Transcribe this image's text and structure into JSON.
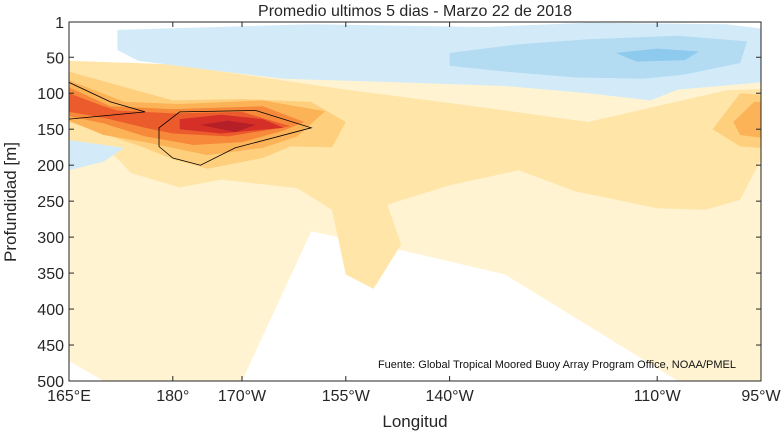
{
  "chart_data": {
    "type": "heatmap",
    "title": "Promedio ultimos 5 dias - Marzo 22 de 2018",
    "xlabel": "Longitud",
    "ylabel": "Profundidad [m]",
    "source_note": "Fuente: Global Tropical Moored Buoy Array Program Office, NOAA/PMEL",
    "x_ticks": [
      {
        "value": 165,
        "label": "165°E"
      },
      {
        "value": 180,
        "label": "180°"
      },
      {
        "value": 190,
        "label": "170°W"
      },
      {
        "value": 205,
        "label": "155°W"
      },
      {
        "value": 220,
        "label": "140°W"
      },
      {
        "value": 250,
        "label": "110°W"
      },
      {
        "value": 265,
        "label": "95°W"
      }
    ],
    "y_ticks": [
      1,
      50,
      100,
      150,
      200,
      250,
      300,
      350,
      400,
      450,
      500
    ],
    "xlim": [
      165,
      265
    ],
    "ylim": [
      1,
      500
    ],
    "y_reversed": true,
    "colors": {
      "cold_3": "#8ec9ee",
      "cold_2": "#b3dcf3",
      "cold_1": "#d3ebf8",
      "neutral": "#ffffff",
      "warm_1": "#fff3d2",
      "warm_2": "#ffe5a8",
      "warm_3": "#fed07e",
      "warm_4": "#fcb257",
      "warm_5": "#f68a3a",
      "warm_6": "#ec5b2c",
      "warm_7": "#d62f27",
      "warm_8": "#b51f28",
      "contour": "#000000",
      "text": "#262626",
      "frame": "#262626"
    },
    "regions": [
      {
        "level": "warm_1",
        "points": [
          [
            165,
            82
          ],
          [
            200,
            62
          ],
          [
            255,
            65
          ],
          [
            265,
            80
          ],
          [
            265,
            500
          ],
          [
            253,
            500
          ],
          [
            228,
            352
          ],
          [
            213,
            318
          ],
          [
            200,
            292
          ],
          [
            190,
            500
          ],
          [
            170,
            500
          ],
          [
            165,
            472
          ]
        ]
      },
      {
        "level": "warm_1",
        "points": [
          [
            195,
            80
          ],
          [
            210,
            100
          ],
          [
            250,
            102
          ],
          [
            262,
            88
          ]
        ]
      },
      {
        "level": "warm_2",
        "points": [
          [
            165,
            55
          ],
          [
            180,
            60
          ],
          [
            205,
            95
          ],
          [
            225,
            120
          ],
          [
            240,
            140
          ],
          [
            260,
            96
          ],
          [
            265,
            94
          ],
          [
            265,
            192
          ],
          [
            262,
            248
          ],
          [
            257,
            262
          ],
          [
            250,
            260
          ],
          [
            238,
            236
          ],
          [
            230,
            207
          ],
          [
            220,
            228
          ],
          [
            211,
            255
          ],
          [
            213,
            310
          ],
          [
            209,
            372
          ],
          [
            205,
            352
          ],
          [
            203,
            262
          ],
          [
            198,
            232
          ],
          [
            187,
            220
          ],
          [
            181,
            231
          ],
          [
            174,
            211
          ],
          [
            171,
            181
          ],
          [
            165,
            190
          ]
        ]
      },
      {
        "level": "warm_3",
        "points": [
          [
            165,
            70
          ],
          [
            180,
            110
          ],
          [
            190,
            108
          ],
          [
            200,
            112
          ],
          [
            205,
            140
          ],
          [
            203,
            175
          ],
          [
            197,
            174
          ],
          [
            193,
            190
          ],
          [
            185,
            205
          ],
          [
            180,
            192
          ],
          [
            176,
            176
          ],
          [
            165,
            140
          ]
        ]
      },
      {
        "level": "warm_3",
        "points": [
          [
            262,
            100
          ],
          [
            265,
            102
          ],
          [
            265,
            176
          ],
          [
            262,
            174
          ],
          [
            258,
            150
          ]
        ]
      },
      {
        "level": "warm_4",
        "points": [
          [
            165,
            82
          ],
          [
            173,
            112
          ],
          [
            181,
            115
          ],
          [
            193,
            110
          ],
          [
            202,
            125
          ],
          [
            198,
            160
          ],
          [
            193,
            176
          ],
          [
            185,
            186
          ],
          [
            176,
            168
          ],
          [
            170,
            158
          ],
          [
            165,
            138
          ]
        ]
      },
      {
        "level": "warm_4",
        "points": [
          [
            264,
            112
          ],
          [
            265,
            112
          ],
          [
            265,
            162
          ],
          [
            262,
            158
          ],
          [
            261,
            140
          ]
        ]
      },
      {
        "level": "warm_5",
        "points": [
          [
            165,
            92
          ],
          [
            171,
            118
          ],
          [
            180,
            122
          ],
          [
            193,
            118
          ],
          [
            199,
            140
          ],
          [
            196,
            152
          ],
          [
            190,
            168
          ],
          [
            183,
            172
          ],
          [
            176,
            160
          ],
          [
            170,
            142
          ],
          [
            165,
            132
          ]
        ]
      },
      {
        "level": "warm_6",
        "points": [
          [
            165,
            100
          ],
          [
            170,
            118
          ],
          [
            172,
            124
          ],
          [
            180,
            128
          ],
          [
            190,
            126
          ],
          [
            197,
            146
          ],
          [
            188,
            160
          ],
          [
            180,
            156
          ],
          [
            176,
            148
          ],
          [
            170,
            134
          ],
          [
            165,
            126
          ]
        ]
      },
      {
        "level": "warm_7",
        "points": [
          [
            181,
            136
          ],
          [
            187,
            130
          ],
          [
            193,
            136
          ],
          [
            196,
            148
          ],
          [
            187,
            156
          ],
          [
            181,
            150
          ]
        ]
      },
      {
        "level": "warm_8",
        "points": [
          [
            184,
            144
          ],
          [
            188,
            138
          ],
          [
            192,
            144
          ],
          [
            189,
            154
          ]
        ]
      },
      {
        "level": "cold_1",
        "points": [
          [
            172,
            12
          ],
          [
            200,
            4
          ],
          [
            225,
            8
          ],
          [
            240,
            2
          ],
          [
            260,
            4
          ],
          [
            265,
            10
          ],
          [
            265,
            85
          ],
          [
            253,
            95
          ],
          [
            249,
            110
          ],
          [
            240,
            100
          ],
          [
            228,
            90
          ],
          [
            210,
            84
          ],
          [
            196,
            80
          ],
          [
            184,
            66
          ],
          [
            175,
            55
          ],
          [
            172,
            40
          ]
        ]
      },
      {
        "level": "cold_2",
        "points": [
          [
            220,
            44
          ],
          [
            230,
            32
          ],
          [
            240,
            25
          ],
          [
            253,
            20
          ],
          [
            263,
            28
          ],
          [
            262,
            58
          ],
          [
            254,
            74
          ],
          [
            248,
            80
          ],
          [
            238,
            78
          ],
          [
            228,
            70
          ],
          [
            220,
            62
          ]
        ]
      },
      {
        "level": "cold_3",
        "points": [
          [
            244,
            44
          ],
          [
            250,
            38
          ],
          [
            256,
            42
          ],
          [
            254,
            54
          ],
          [
            247,
            56
          ]
        ]
      },
      {
        "level": "cold_1",
        "points": [
          [
            165,
            165
          ],
          [
            173,
            176
          ],
          [
            170,
            195
          ],
          [
            165,
            207
          ]
        ]
      }
    ],
    "contours": [
      {
        "points": [
          [
            165,
            85
          ],
          [
            171,
            112
          ],
          [
            176,
            126
          ],
          [
            165,
            136
          ]
        ]
      },
      {
        "points": [
          [
            178,
            148
          ],
          [
            181,
            126
          ],
          [
            192,
            124
          ],
          [
            200,
            148
          ],
          [
            189,
            176
          ],
          [
            184,
            200
          ],
          [
            180,
            190
          ],
          [
            178,
            174
          ]
        ]
      }
    ]
  }
}
